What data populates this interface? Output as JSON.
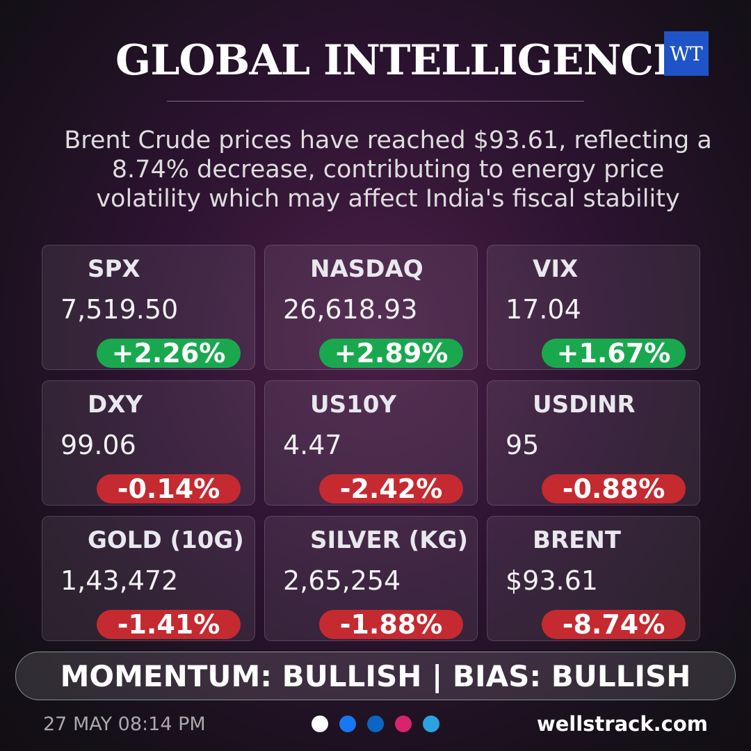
{
  "header": {
    "title": "GLOBAL INTELLIGENCE",
    "logo": "WT",
    "description": [
      "Brent Crude prices have reached $93.61, reflecting a",
      "8.74% decrease, contributing to energy price",
      "volatility which may affect India's fiscal stability"
    ]
  },
  "cards": [
    {
      "name": "SPX",
      "value": "7,519.50",
      "change": "+2.26%",
      "direction": "up"
    },
    {
      "name": "NASDAQ",
      "value": "26,618.93",
      "change": "+2.89%",
      "direction": "up"
    },
    {
      "name": "VIX",
      "value": "17.04",
      "change": "+1.67%",
      "direction": "up"
    },
    {
      "name": "DXY",
      "value": "99.06",
      "change": "-0.14%",
      "direction": "down"
    },
    {
      "name": "US10Y",
      "value": "4.47",
      "change": "-2.42%",
      "direction": "down"
    },
    {
      "name": "USDINR",
      "value": "95",
      "change": "-0.88%",
      "direction": "down"
    },
    {
      "name": "GOLD (10G)",
      "value": "1,43,472",
      "change": "-1.41%",
      "direction": "down"
    },
    {
      "name": "SILVER (KG)",
      "value": "2,65,254",
      "change": "-1.88%",
      "direction": "down"
    },
    {
      "name": "BRENT",
      "value": "$93.61",
      "change": "-8.74%",
      "direction": "down"
    }
  ],
  "footer": {
    "banner": "MOMENTUM: BULLISH | BIAS: BULLISH",
    "date": "27 MAY 08:14 PM",
    "website": "wellstrack.com"
  }
}
